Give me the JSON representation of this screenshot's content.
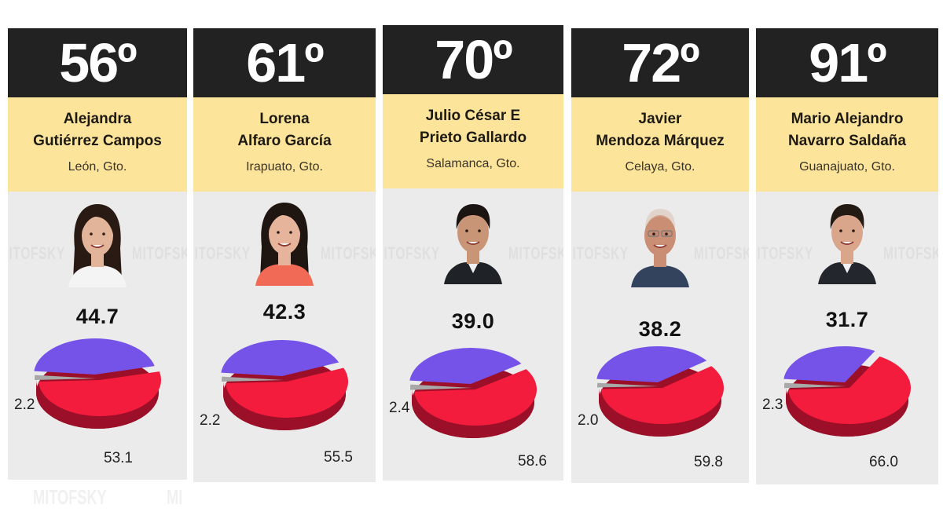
{
  "source_watermark": "MITOFSKY",
  "colors": {
    "rank_bg": "#222222",
    "info_bg": "#fde49b",
    "card_bg": "#ebebeb",
    "approve": "#7553e8",
    "disapprove": "#f31c3c",
    "undecided": "#a8a8a8"
  },
  "cards": [
    {
      "rank": "56",
      "deg": "º",
      "name_line1": "Alejandra",
      "name_line2": "Gutiérrez Campos",
      "city": "León, Gto.",
      "approve": "44.7",
      "undecided": "2.2",
      "disapprove": "53.1"
    },
    {
      "rank": "61",
      "deg": "º",
      "name_line1": "Lorena",
      "name_line2": "Alfaro García",
      "city": "Irapuato, Gto.",
      "approve": "42.3",
      "undecided": "2.2",
      "disapprove": "55.5"
    },
    {
      "rank": "70",
      "deg": "º",
      "name_line1": "Julio César E",
      "name_line2": "Prieto Gallardo",
      "city": "Salamanca, Gto.",
      "approve": "39.0",
      "undecided": "2.4",
      "disapprove": "58.6"
    },
    {
      "rank": "72",
      "deg": "º",
      "name_line1": "Javier",
      "name_line2": "Mendoza Márquez",
      "city": "Celaya, Gto.",
      "approve": "38.2",
      "undecided": "2.0",
      "disapprove": "59.8"
    },
    {
      "rank": "91",
      "deg": "º",
      "name_line1": "Mario Alejandro",
      "name_line2": "Navarro Saldaña",
      "city": "Guanajuato, Gto.",
      "approve": "31.7",
      "undecided": "2.3",
      "disapprove": "66.0"
    }
  ],
  "chart_data": {
    "type": "pie",
    "title": "Mayor approval ranking (Guanajuato)",
    "categories": [
      "56º Alejandra Gutiérrez Campos — León, Gto.",
      "61º Lorena Alfaro García — Irapuato, Gto.",
      "70º Julio César E Prieto Gallardo — Salamanca, Gto.",
      "72º Javier Mendoza Márquez — Celaya, Gto.",
      "91º Mario Alejandro Navarro Saldaña — Guanajuato, Gto."
    ],
    "series": [
      {
        "name": "Approve (purple)",
        "values": [
          44.7,
          42.3,
          39.0,
          38.2,
          31.7
        ]
      },
      {
        "name": "No answer (gray)",
        "values": [
          2.2,
          2.2,
          2.4,
          2.0,
          2.3
        ]
      },
      {
        "name": "Disapprove (red)",
        "values": [
          53.1,
          55.5,
          58.6,
          59.8,
          66.0
        ]
      }
    ],
    "legend": "none",
    "grid": false
  }
}
